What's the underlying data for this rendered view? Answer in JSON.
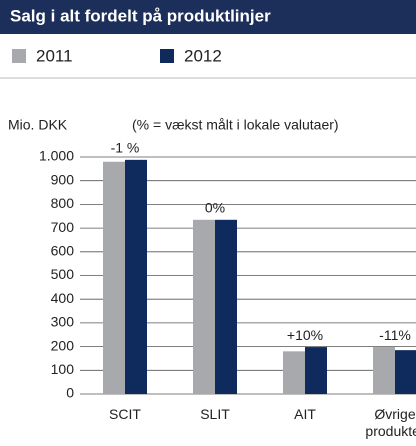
{
  "chart_data": {
    "type": "bar",
    "title": "Salg i alt fordelt på produktlinjer",
    "y_label": "Mio. DKK",
    "note": "(% = vækst målt i lokale valutaer)",
    "categories": [
      "SCIT",
      "SLIT",
      "AIT",
      "Øvrige produkter"
    ],
    "series": [
      {
        "name": "2011",
        "color": "#a7a9ac",
        "values": [
          980,
          735,
          180,
          198
        ]
      },
      {
        "name": "2012",
        "color": "#0f2a5c",
        "values": [
          988,
          735,
          198,
          185
        ]
      }
    ],
    "growth_labels": [
      "-1 %",
      "0%",
      "+10%",
      "-11%"
    ],
    "ylim": [
      0,
      1000
    ],
    "yticks": [
      0,
      100,
      200,
      300,
      400,
      500,
      600,
      700,
      800,
      900,
      {
        "value": 1000,
        "label": "1.000"
      }
    ],
    "grid": true
  }
}
